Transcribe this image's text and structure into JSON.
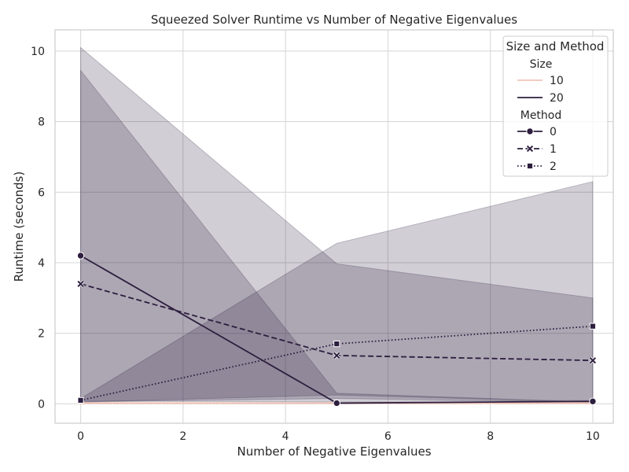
{
  "chart_data": {
    "type": "line",
    "title": "Squeezed Solver Runtime vs Number of Negative Eigenvalues",
    "xlabel": "Number of Negative Eigenvalues",
    "ylabel": "Runtime (seconds)",
    "xlim": [
      -0.5,
      10.4
    ],
    "ylim": [
      -0.55,
      10.6
    ],
    "xticks": [
      0,
      2,
      4,
      6,
      8,
      10
    ],
    "yticks": [
      0,
      2,
      4,
      6,
      8,
      10
    ],
    "x": [
      0,
      5,
      10
    ],
    "grid": true,
    "legend": {
      "title": "Size and Method",
      "placement": "top-right",
      "size_title": "Size",
      "size_entries": [
        {
          "label": "10",
          "color": "#f0c4b8"
        },
        {
          "label": "20",
          "color": "#2d1e3e"
        }
      ],
      "method_title": "Method",
      "method_entries": [
        {
          "label": "0",
          "dash": "solid",
          "marker": "circle"
        },
        {
          "label": "1",
          "dash": "dashed",
          "marker": "x"
        },
        {
          "label": "2",
          "dash": "dotted",
          "marker": "square"
        }
      ]
    },
    "bands": [
      {
        "lower": [
          0.05,
          0.25,
          0.05
        ],
        "upper": [
          9.45,
          0.3,
          0.05
        ],
        "color": "#2d1e3e",
        "opacity": 0.22
      },
      {
        "lower": [
          0.05,
          0.15,
          0.05
        ],
        "upper": [
          10.1,
          3.97,
          3.0
        ],
        "color": "#2d1e3e",
        "opacity": 0.22
      },
      {
        "lower": [
          0.08,
          0.05,
          0.1
        ],
        "upper": [
          0.15,
          4.55,
          6.3
        ],
        "color": "#2d1e3e",
        "opacity": 0.22
      }
    ],
    "series": [
      {
        "size": "10",
        "method": "0",
        "values": [
          0.02,
          0.02,
          0.02
        ],
        "color": "#f0c4b8",
        "dash": "solid",
        "marker": "none"
      },
      {
        "size": "10",
        "method": "1",
        "values": [
          0.01,
          0.01,
          0.01
        ],
        "color": "#f0c4b8",
        "dash": "dashed",
        "marker": "none"
      },
      {
        "size": "10",
        "method": "2",
        "values": [
          0.03,
          0.03,
          0.03
        ],
        "color": "#f0c4b8",
        "dash": "dotted",
        "marker": "none"
      },
      {
        "size": "20",
        "method": "0",
        "values": [
          4.2,
          0.02,
          0.07
        ],
        "color": "#2d1e3e",
        "dash": "solid",
        "marker": "circle"
      },
      {
        "size": "20",
        "method": "1",
        "values": [
          3.4,
          1.37,
          1.23
        ],
        "color": "#2d1e3e",
        "dash": "dashed",
        "marker": "x"
      },
      {
        "size": "20",
        "method": "2",
        "values": [
          0.1,
          1.7,
          2.2
        ],
        "color": "#2d1e3e",
        "dash": "dotted",
        "marker": "square"
      }
    ]
  }
}
